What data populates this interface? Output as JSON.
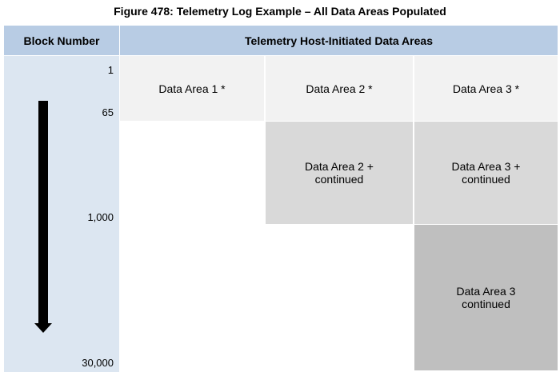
{
  "caption": "Figure 478: Telemetry Log Example – All Data Areas Populated",
  "header": {
    "block_number": "Block Number",
    "areas": "Telemetry Host-Initiated Data Areas"
  },
  "block_ticks": [
    "1",
    "65",
    "1,000",
    "30,000"
  ],
  "cells": {
    "row1": [
      "Data Area 1 *",
      "Data Area 2 *",
      "Data Area 3 *"
    ],
    "row2": [
      "Data Area 2 +\ncontinued",
      "Data Area 3 +\ncontinued"
    ],
    "row3": [
      "Data Area 3\ncontinued"
    ]
  },
  "colors": {
    "header": "#b8cce4",
    "block_column": "#dce6f1",
    "row1": "#f2f2f2",
    "row2": "#d9d9d9",
    "row3": "#bfbfbf"
  }
}
